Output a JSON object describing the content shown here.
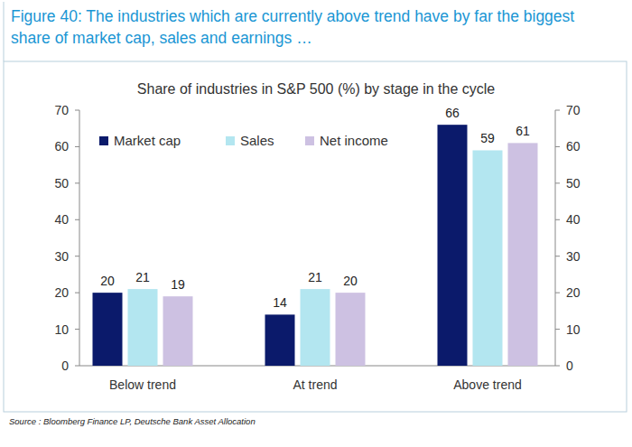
{
  "chart_data": {
    "type": "bar",
    "title": "Figure 40: The industries which are currently above trend have by far the biggest share of market cap, sales and earnings …",
    "subtitle": "Share of industries in S&P 500 (%) by stage in the cycle",
    "source": "Source : Bloomberg Finance LP, Deutsche Bank Asset Allocation",
    "categories": [
      "Below trend",
      "At trend",
      "Above trend"
    ],
    "series": [
      {
        "name": "Market cap",
        "color": "#0b1a6b",
        "values": [
          20,
          14,
          66
        ]
      },
      {
        "name": "Sales",
        "color": "#b3e6f0",
        "values": [
          21,
          21,
          59
        ]
      },
      {
        "name": "Net income",
        "color": "#cdc1e2",
        "values": [
          19,
          20,
          61
        ]
      }
    ],
    "ylim": [
      0,
      70
    ],
    "yticks": [
      0,
      10,
      20,
      30,
      40,
      50,
      60,
      70
    ],
    "y2lim": [
      0,
      70
    ],
    "y2ticks": [
      0,
      10,
      20,
      30,
      40,
      50,
      60,
      70
    ],
    "grid": false,
    "legend": "top-left",
    "data_labels": true
  }
}
